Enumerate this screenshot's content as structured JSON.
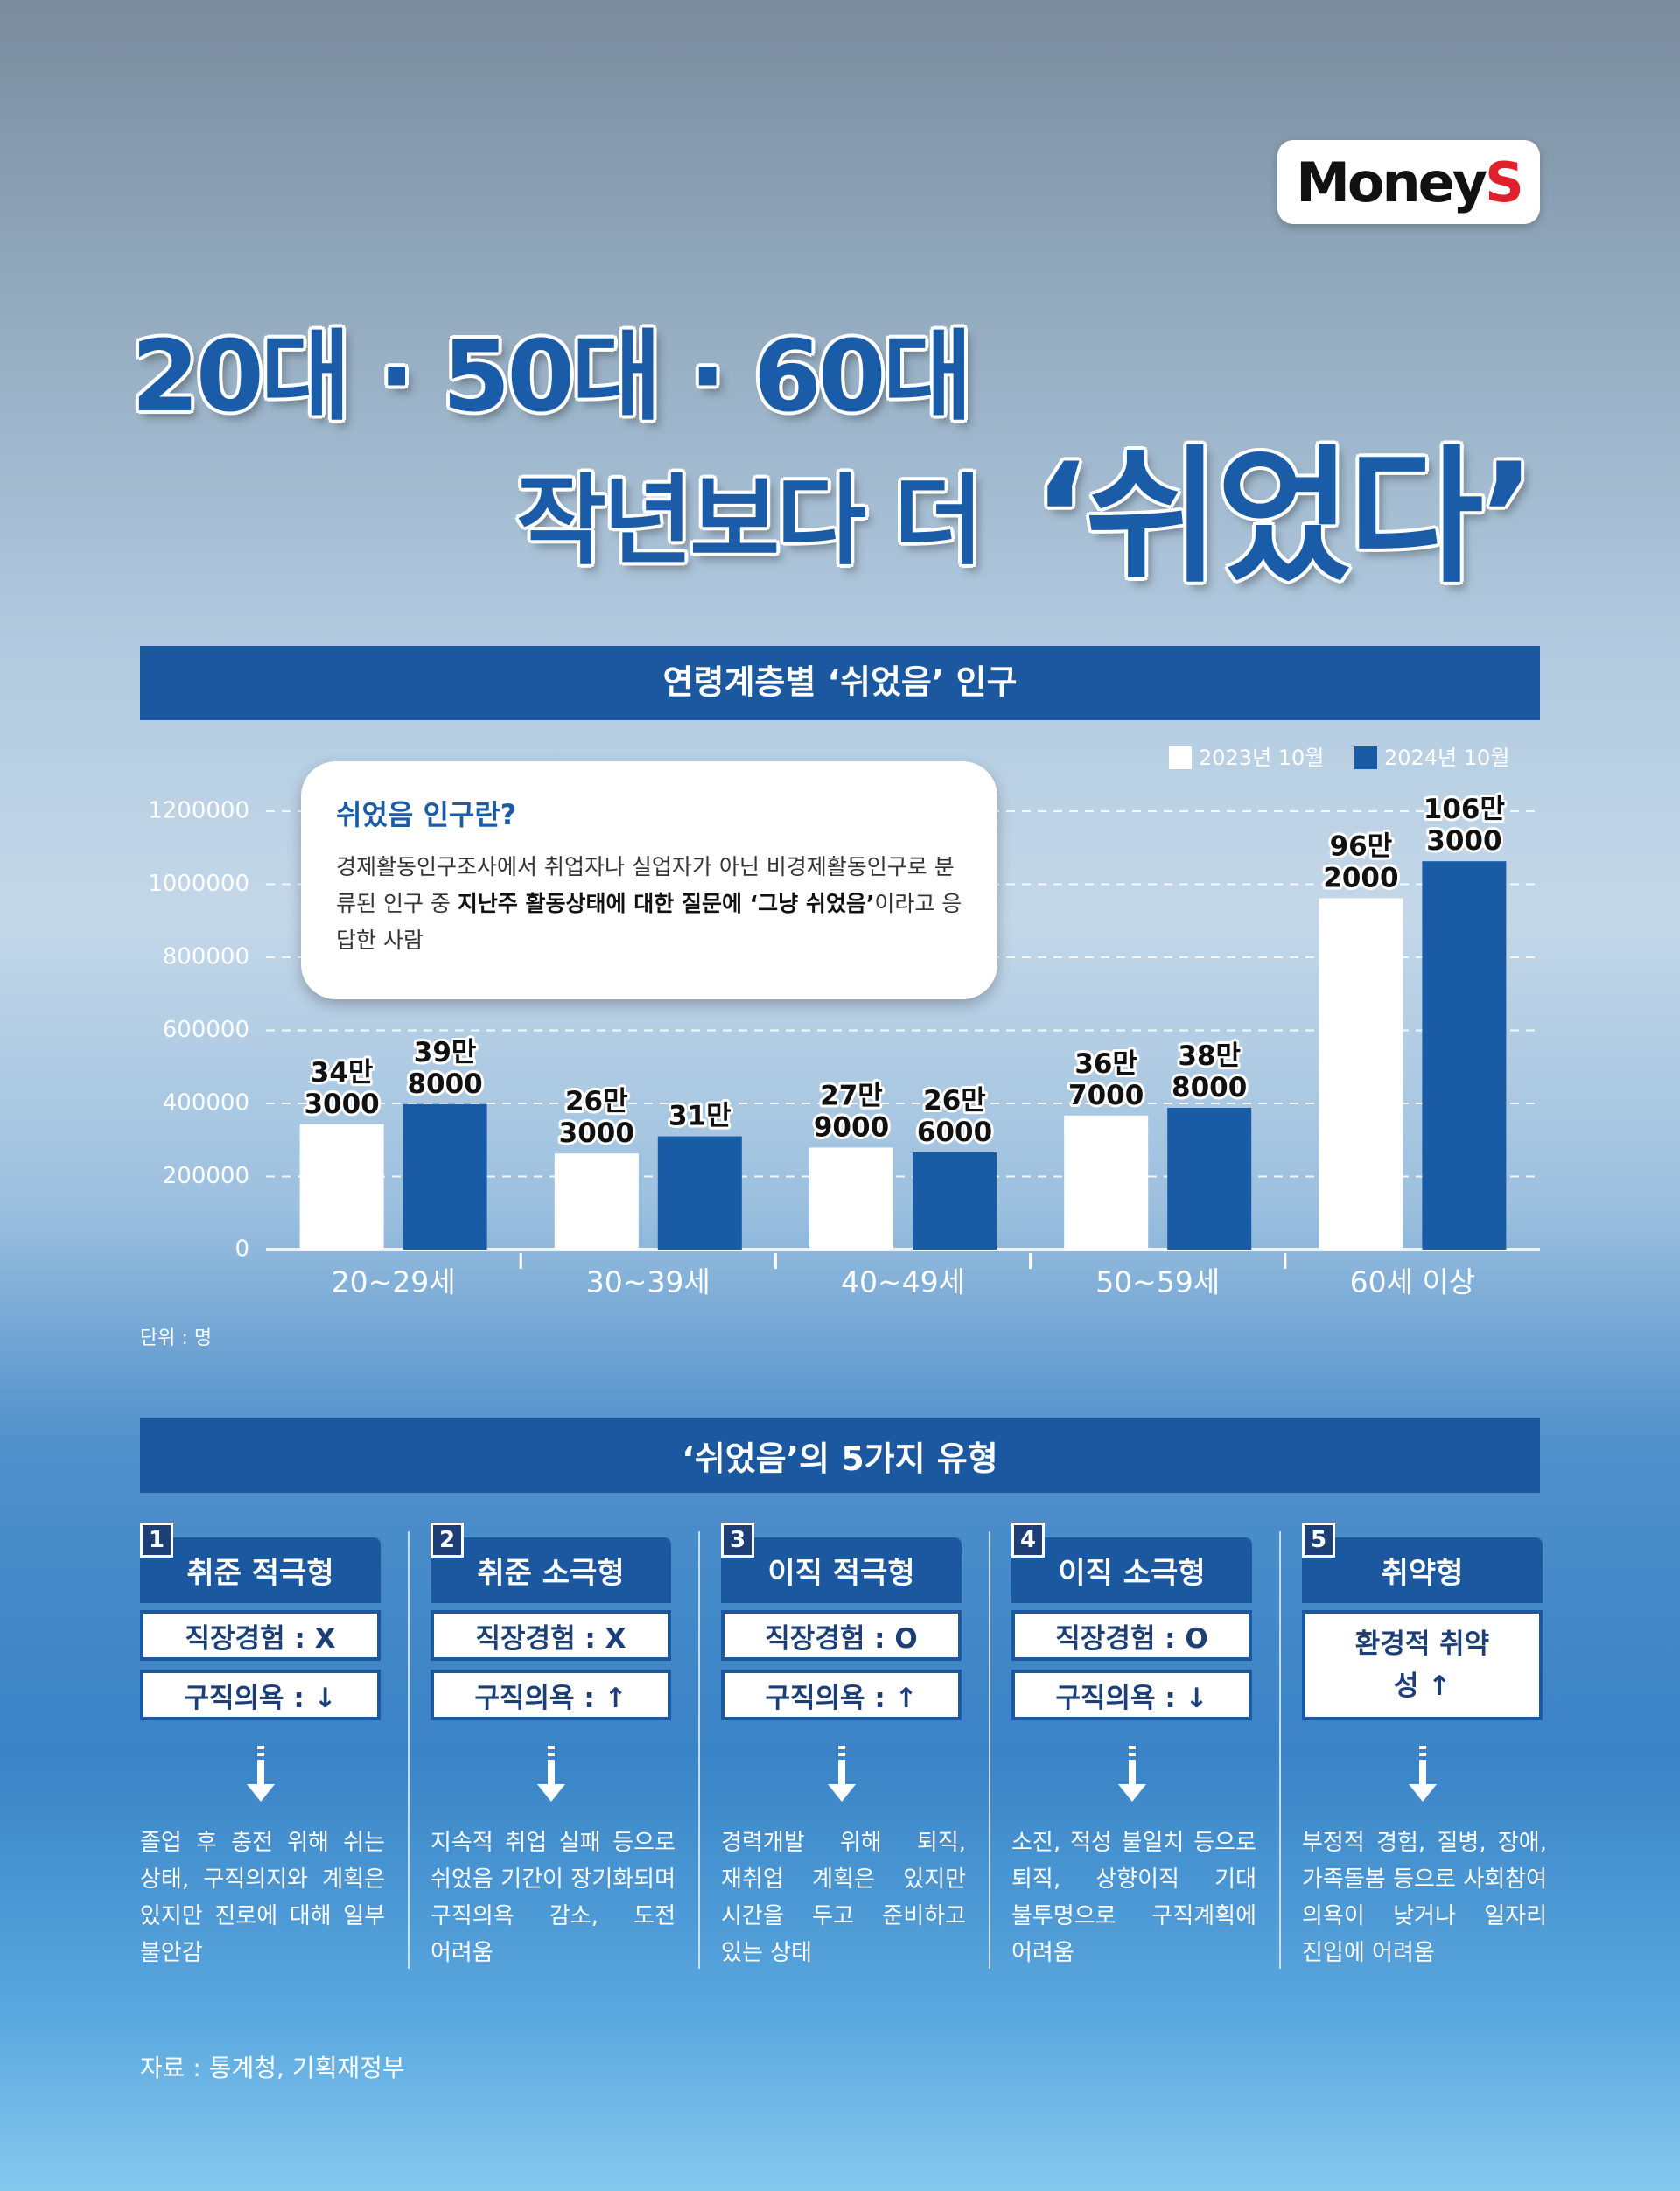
{
  "logo": {
    "word": "Money",
    "letter": "S"
  },
  "headline": {
    "line1": "20대 · 50대 · 60대",
    "line2": "작년보다 더",
    "emphasis": "‘쉬었다’"
  },
  "chart_data": {
    "type": "bar",
    "title": "연령계층별 ‘쉬었음’ 인구",
    "categories": [
      "20~29세",
      "30~39세",
      "40~49세",
      "50~59세",
      "60세 이상"
    ],
    "series": [
      {
        "name": "2023년 10월",
        "color": "#ffffff",
        "values": [
          343000,
          263000,
          279000,
          367000,
          962000
        ],
        "value_labels": [
          "34만 3000",
          "26만 3000",
          "27만 9000",
          "36만 7000",
          "96만 2000"
        ]
      },
      {
        "name": "2024년 10월",
        "color": "#1a5ba6",
        "values": [
          398000,
          310000,
          266000,
          388000,
          1063000
        ],
        "value_labels": [
          "39만 8000",
          "31만",
          "26만 6000",
          "38만 8000",
          "106만 3000"
        ]
      }
    ],
    "ylim": [
      0,
      1200000
    ],
    "yticks": [
      0,
      200000,
      400000,
      600000,
      800000,
      1000000,
      1200000
    ],
    "grid": true,
    "legend": "top-right",
    "unit": "단위 : 명"
  },
  "note": {
    "title": "쉬었음 인구란?",
    "parts": [
      {
        "text": "경제활동인구조사에서 취업자나 실업자가 아닌 비경제활동인구로 분류된 인구 중 ",
        "bold": false
      },
      {
        "text": "지난주 활동상태에 대한 질문에 ‘그냥 쉬었음’",
        "bold": true
      },
      {
        "text": "이라고 응답한 사람",
        "bold": false
      }
    ]
  },
  "types": {
    "title": "‘쉬었음’의 5가지 유형",
    "items": [
      {
        "number": "1",
        "name": "취준 적극형",
        "rows": [
          "직장경험 : X",
          "구직의욕 : ↓"
        ],
        "description": "졸업 후 충전 위해 쉬는 상태, 구직의지와 계획은 있지만 진로에 대해 일부 불안감"
      },
      {
        "number": "2",
        "name": "취준 소극형",
        "rows": [
          "직장경험 : X",
          "구직의욕 : ↑"
        ],
        "description": "지속적 취업 실패 등으로 쉬었음 기간이 장기화되며 구직의욕 감소, 도전 어려움"
      },
      {
        "number": "3",
        "name": "이직 적극형",
        "rows": [
          "직장경험 : O",
          "구직의욕 : ↑"
        ],
        "description": "경력개발 위해 퇴직, 재취업 계획은 있지만 시간을 두고 준비하고 있는 상태"
      },
      {
        "number": "4",
        "name": "이직 소극형",
        "rows": [
          "직장경험 : O",
          "구직의욕 : ↓"
        ],
        "description": "소진, 적성 불일치 등으로 퇴직, 상향이직 기대 불투명으로 구직계획에 어려움"
      },
      {
        "number": "5",
        "name": "취약형",
        "rows": [
          "환경적 취약성 ↑"
        ],
        "description": "부정적 경험, 질병, 장애, 가족돌봄 등으로 사회참여 의욕이 낮거나 일자리 진입에 어려움"
      }
    ]
  },
  "source": "자료 : 통계청, 기획재정부"
}
